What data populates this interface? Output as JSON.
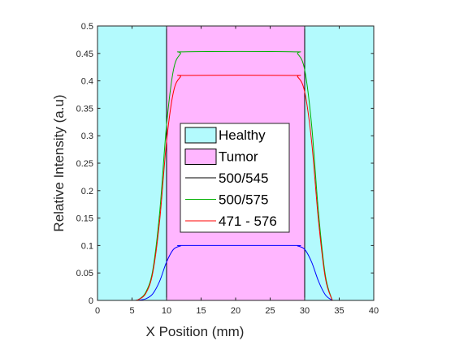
{
  "chart_data": {
    "type": "line",
    "title": "",
    "xlabel": "X Position (mm)",
    "ylabel": "Relative Intensity (a.u)",
    "xlim": [
      0,
      40
    ],
    "ylim": [
      0,
      0.5
    ],
    "xticks": [
      0,
      5,
      10,
      15,
      20,
      25,
      30,
      35,
      40
    ],
    "yticks": [
      0,
      0.05,
      0.1,
      0.15,
      0.2,
      0.25,
      0.3,
      0.35,
      0.4,
      0.45,
      0.5
    ],
    "xtick_labels": [
      "0",
      "5",
      "10",
      "15",
      "20",
      "25",
      "30",
      "35",
      "40"
    ],
    "ytick_labels": [
      "0",
      "0.05",
      "0.1",
      "0.15",
      "0.2",
      "0.25",
      "0.3",
      "0.35",
      "0.4",
      "0.45",
      "0.5"
    ],
    "grid": false,
    "legend_position": "center",
    "regions": [
      {
        "name": "Healthy",
        "color": "#b3fafd",
        "ranges": [
          [
            0,
            10
          ],
          [
            30,
            40
          ]
        ]
      },
      {
        "name": "Tumor",
        "color": "#ffb6ff",
        "ranges": [
          [
            10,
            30
          ]
        ]
      }
    ],
    "boundaries": [
      10,
      30
    ],
    "series": [
      {
        "name": "500/545",
        "legend_color": "#000000",
        "line_color": "#0000ff",
        "plateau": 0.1,
        "x": [
          5.5,
          6,
          7,
          8,
          9,
          10,
          11,
          12,
          13,
          28,
          29,
          30,
          31,
          32,
          33,
          34
        ],
        "y": [
          0,
          0.0005,
          0.003,
          0.012,
          0.035,
          0.07,
          0.093,
          0.099,
          0.1,
          0.1,
          0.099,
          0.093,
          0.07,
          0.035,
          0.01,
          0
        ]
      },
      {
        "name": "500/575",
        "legend_color": "#00b000",
        "line_color": "#00b000",
        "plateau": 0.453,
        "x": [
          5.5,
          6,
          7,
          8,
          9,
          10,
          11,
          12,
          13,
          28,
          29,
          30,
          31,
          32,
          33,
          34
        ],
        "y": [
          0,
          0.002,
          0.015,
          0.055,
          0.16,
          0.32,
          0.42,
          0.449,
          0.453,
          0.453,
          0.449,
          0.42,
          0.32,
          0.16,
          0.045,
          0
        ]
      },
      {
        "name": "471 - 576",
        "legend_color": "#ff0000",
        "line_color": "#ff0000",
        "plateau": 0.41,
        "x": [
          5.5,
          6,
          7,
          8,
          9,
          10,
          11,
          12,
          13,
          28,
          29,
          30,
          31,
          32,
          33,
          34
        ],
        "y": [
          0,
          0.002,
          0.013,
          0.05,
          0.145,
          0.29,
          0.38,
          0.407,
          0.41,
          0.41,
          0.407,
          0.38,
          0.29,
          0.145,
          0.04,
          0
        ]
      }
    ]
  }
}
